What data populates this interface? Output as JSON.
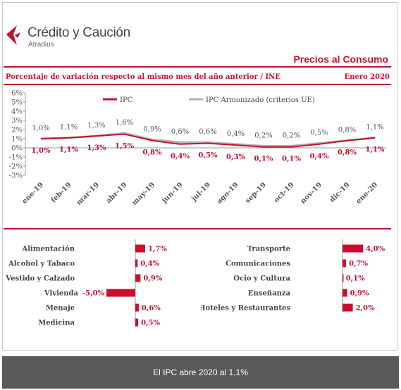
{
  "header": {
    "logo_name": "Crédito y Caución",
    "logo_sub": "Atradius",
    "section_title": "Precios al Consumo",
    "subtitle": "Porcentaje de variación respecto al mismo mes del año anterior / INE",
    "date": "Enero 2020"
  },
  "colors": {
    "accent": "#c8102e",
    "harmonized": "#b3b3b3",
    "footer_bg": "#595959"
  },
  "chart_data": [
    {
      "type": "line",
      "categories": [
        "ene-19",
        "feb-19",
        "mar-19",
        "abr-19",
        "may-19",
        "jun-19",
        "jul-19",
        "ago-19",
        "sep-19",
        "oct-19",
        "nov-19",
        "dic-19",
        "ene-20"
      ],
      "y_ticks": [
        "6%",
        "5%",
        "4%",
        "3%",
        "2%",
        "1%",
        "0%",
        "-1%",
        "-2%",
        "-3%"
      ],
      "ylim": [
        -3,
        6
      ],
      "series": [
        {
          "name": "IPC",
          "color": "#c8102e",
          "values": [
            1.0,
            1.1,
            1.3,
            1.5,
            0.8,
            0.4,
            0.5,
            0.3,
            0.1,
            0.1,
            0.4,
            0.8,
            1.1
          ],
          "labels": [
            "1,0%",
            "1,1%",
            "1,3%",
            "1,5%",
            "0,8%",
            "0,4%",
            "0,5%",
            "0,3%",
            "0,1%",
            "0,1%",
            "0,4%",
            "0,8%",
            "1,1%"
          ]
        },
        {
          "name": "IPC Armonizado (criterios UE)",
          "color": "#b3b3b3",
          "values": [
            1.0,
            1.1,
            1.3,
            1.6,
            0.9,
            0.6,
            0.6,
            0.4,
            0.2,
            0.2,
            0.5,
            0.8,
            1.1
          ],
          "labels": [
            "1,0%",
            "1,1%",
            "1,3%",
            "1,6%",
            "0,9%",
            "0,6%",
            "0,6%",
            "0,4%",
            "0,2%",
            "0,2%",
            "0,5%",
            "0,8%",
            "1,1%"
          ]
        }
      ],
      "legend": "top-center",
      "grid": false
    },
    {
      "type": "bar",
      "orientation": "horizontal",
      "categories": [
        "Alimentación",
        "Alcohol y Tabaco",
        "Vestido y Calzado",
        "Vivienda",
        "Menaje",
        "Medicina"
      ],
      "values": [
        1.7,
        0.4,
        0.9,
        -5.0,
        0.6,
        0.5
      ],
      "labels": [
        "1,7%",
        "0,4%",
        "0,9%",
        "-5,0%",
        "0,6%",
        "0,5%"
      ]
    },
    {
      "type": "bar",
      "orientation": "horizontal",
      "categories": [
        "Transporte",
        "Comunicaciones",
        "Ocio y Cultura",
        "Enseñanza",
        "Hoteles y Restaurantes"
      ],
      "values": [
        4.0,
        0.7,
        0.1,
        0.9,
        2.0
      ],
      "labels": [
        "4,0%",
        "0,7%",
        "0,1%",
        "0,9%",
        "2,0%"
      ]
    }
  ],
  "footer": {
    "text": "El IPC abre 2020 al 1,1%"
  }
}
